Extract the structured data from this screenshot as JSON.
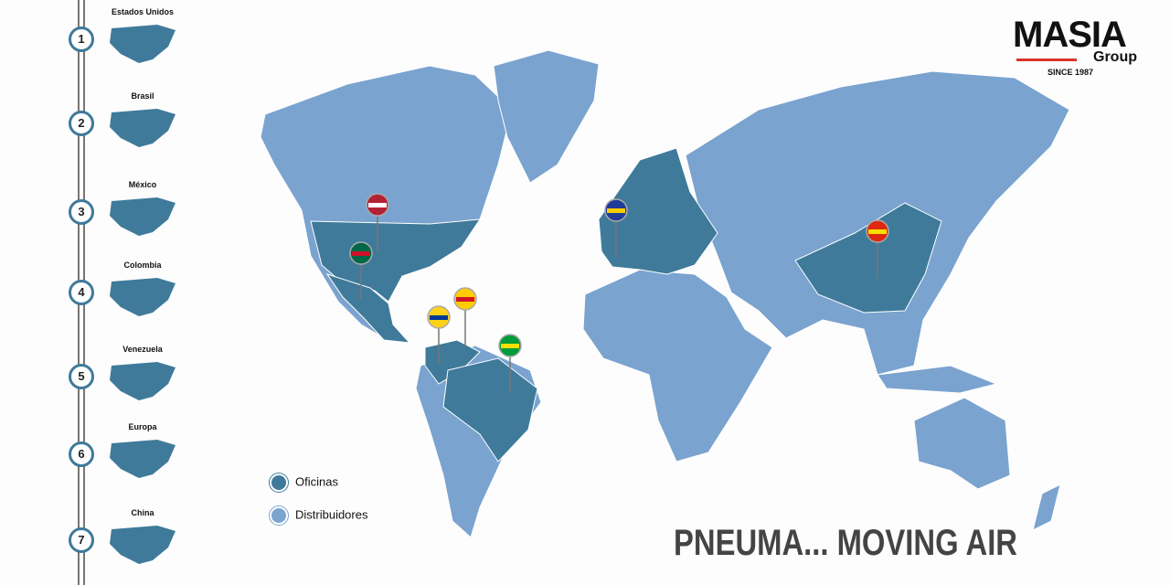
{
  "colors": {
    "offices": "#3f7a9a",
    "distributors": "#7aa3cf",
    "accent": "#d9342b"
  },
  "logo": {
    "name": "MASIA",
    "sub": "Group",
    "since": "SINCE 1987"
  },
  "sidebar": [
    {
      "n": "1",
      "label": "Estados Unidos"
    },
    {
      "n": "2",
      "label": "Brasil"
    },
    {
      "n": "3",
      "label": "México"
    },
    {
      "n": "4",
      "label": "Colombia"
    },
    {
      "n": "5",
      "label": "Venezuela"
    },
    {
      "n": "6",
      "label": "Europa"
    },
    {
      "n": "7",
      "label": "China"
    }
  ],
  "legend": {
    "offices": "Oficinas",
    "distributors": "Distribuidores"
  },
  "pins": [
    "us-flag",
    "mexico-flag",
    "eu-flag",
    "china-flag",
    "venezuela-flag",
    "colombia-flag",
    "brazil-flag"
  ],
  "slogan": "PNEUMA... MOVING AIR"
}
